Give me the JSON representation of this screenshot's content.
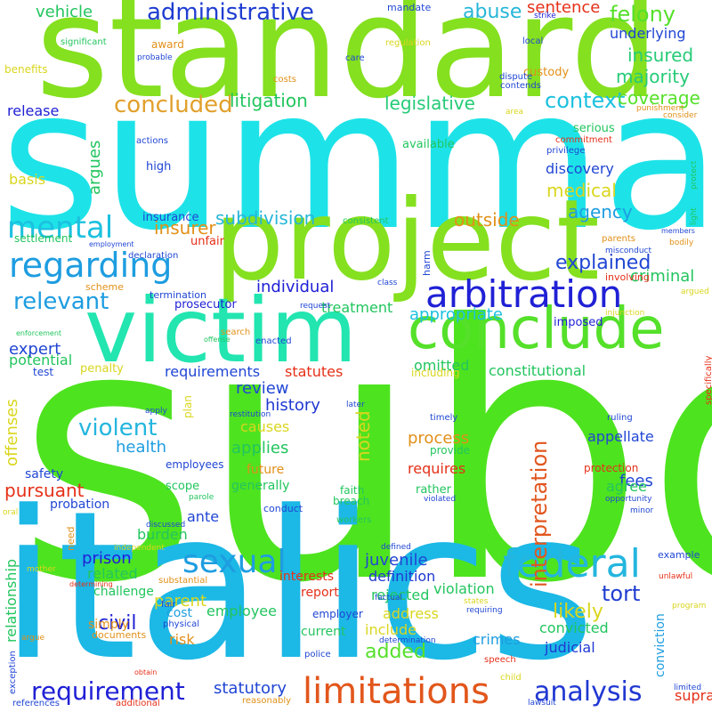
{
  "words": [
    {
      "text": "subd",
      "color": "#4ee31f"
    },
    {
      "text": "summary",
      "color": "#1de3e8"
    },
    {
      "text": "italics",
      "color": "#1cb8e6"
    },
    {
      "text": "standard",
      "color": "#85e01f"
    },
    {
      "text": "project",
      "color": "#85e01f"
    },
    {
      "text": "victim",
      "color": "#22e5b0"
    },
    {
      "text": "conclude",
      "color": "#55e02a"
    },
    {
      "text": "arbitration",
      "color": "#2020d6"
    },
    {
      "text": "limitations",
      "color": "#e2561b"
    },
    {
      "text": "federal",
      "color": "#23b6de"
    },
    {
      "text": "regarding",
      "color": "#1e9de0"
    },
    {
      "text": "sexual",
      "color": "#1e9de0"
    },
    {
      "text": "requirement",
      "color": "#2020d6"
    },
    {
      "text": "analysis",
      "color": "#2038d2"
    },
    {
      "text": "mental",
      "color": "#1cc1df"
    },
    {
      "text": "administrative",
      "color": "#1f3dd0"
    },
    {
      "text": "concluded",
      "color": "#e1a02c"
    },
    {
      "text": "relevant",
      "color": "#1e9de0"
    },
    {
      "text": "violent",
      "color": "#23b6de"
    },
    {
      "text": "interpretation",
      "color": "#e1561e"
    },
    {
      "text": "felony",
      "color": "#55e02a"
    },
    {
      "text": "context",
      "color": "#1cc1df"
    },
    {
      "text": "explained",
      "color": "#2046d4"
    },
    {
      "text": "pursuant",
      "color": "#e53018"
    },
    {
      "text": "litigation",
      "color": "#22c55e"
    },
    {
      "text": "abuse",
      "color": "#26b6d8"
    },
    {
      "text": "insured",
      "color": "#26cb77"
    },
    {
      "text": "majority",
      "color": "#26cb77"
    },
    {
      "text": "legislative",
      "color": "#26cb77"
    },
    {
      "text": "coverage",
      "color": "#55e02a"
    },
    {
      "text": "medical",
      "color": "#d9d61e"
    },
    {
      "text": "agency",
      "color": "#1e9de0"
    },
    {
      "text": "insurer",
      "color": "#e19019"
    },
    {
      "text": "outside",
      "color": "#e19019"
    },
    {
      "text": "individual",
      "color": "#2020d6"
    },
    {
      "text": "appropriate",
      "color": "#1cc1df"
    },
    {
      "text": "criminal",
      "color": "#22c55e"
    },
    {
      "text": "review",
      "color": "#2046d4"
    },
    {
      "text": "history",
      "color": "#2038d2"
    },
    {
      "text": "noted",
      "color": "#d9d61e"
    },
    {
      "text": "process",
      "color": "#e19019"
    },
    {
      "text": "juvenile",
      "color": "#2046d4"
    },
    {
      "text": "tort",
      "color": "#1f3dd0"
    },
    {
      "text": "civil",
      "color": "#2020d6"
    },
    {
      "text": "added",
      "color": "#55e02a"
    },
    {
      "text": "likely",
      "color": "#d9d61e"
    },
    {
      "text": "subdivision",
      "color": "#26b6d8"
    },
    {
      "text": "applies",
      "color": "#22c55e"
    },
    {
      "text": "offenses",
      "color": "#d9d61e"
    },
    {
      "text": "relationship",
      "color": "#22c55e"
    },
    {
      "text": "argues",
      "color": "#22c55e"
    },
    {
      "text": "statutory",
      "color": "#2046d4"
    },
    {
      "text": "health",
      "color": "#1e9de0"
    },
    {
      "text": "expert",
      "color": "#2046d4"
    },
    {
      "text": "fees",
      "color": "#2046d4"
    },
    {
      "text": "agree",
      "color": "#22c55e"
    },
    {
      "text": "prison",
      "color": "#2020d6"
    },
    {
      "text": "parent",
      "color": "#d9d61e"
    },
    {
      "text": "vehicle",
      "color": "#22c55e"
    },
    {
      "text": "sentence",
      "color": "#e53018"
    },
    {
      "text": "underlying",
      "color": "#2046d4"
    },
    {
      "text": "release",
      "color": "#2020d6"
    },
    {
      "text": "basis",
      "color": "#d9d61e"
    },
    {
      "text": "discovery",
      "color": "#2046d4"
    },
    {
      "text": "potential",
      "color": "#22c55e"
    },
    {
      "text": "treatment",
      "color": "#22c55e"
    },
    {
      "text": "requirements",
      "color": "#2046d4"
    },
    {
      "text": "statutes",
      "color": "#e53018"
    },
    {
      "text": "omitted",
      "color": "#22c55e"
    },
    {
      "text": "constitutional",
      "color": "#22c55e"
    },
    {
      "text": "requires",
      "color": "#e53018"
    },
    {
      "text": "burden",
      "color": "#22c55e"
    },
    {
      "text": "related",
      "color": "#22c55e"
    },
    {
      "text": "definition",
      "color": "#2038d2"
    },
    {
      "text": "rejected",
      "color": "#22c55e"
    },
    {
      "text": "violation",
      "color": "#22c55e"
    },
    {
      "text": "address",
      "color": "#d9d61e"
    },
    {
      "text": "include",
      "color": "#d9d61e"
    },
    {
      "text": "crimes",
      "color": "#1e9de0"
    },
    {
      "text": "convicted",
      "color": "#22c55e"
    },
    {
      "text": "judicial",
      "color": "#2038d2"
    },
    {
      "text": "risk",
      "color": "#e19019"
    },
    {
      "text": "employee",
      "color": "#22c55e"
    },
    {
      "text": "appellate",
      "color": "#2046d4"
    },
    {
      "text": "causes",
      "color": "#d9d61e"
    },
    {
      "text": "ante",
      "color": "#2046d4"
    },
    {
      "text": "probation",
      "color": "#2046d4"
    },
    {
      "text": "safety",
      "color": "#2046d4"
    },
    {
      "text": "conviction",
      "color": "#1e9de0"
    },
    {
      "text": "supra",
      "color": "#e53018"
    },
    {
      "text": "current",
      "color": "#22c55e"
    },
    {
      "text": "report",
      "color": "#e53018"
    },
    {
      "text": "interests",
      "color": "#e53018"
    },
    {
      "text": "challenge",
      "color": "#22c55e"
    },
    {
      "text": "simply",
      "color": "#e19019"
    },
    {
      "text": "cost",
      "color": "#1e9de0"
    },
    {
      "text": "future",
      "color": "#e19019"
    },
    {
      "text": "generally",
      "color": "#22c55e"
    },
    {
      "text": "insurance",
      "color": "#2046d4"
    },
    {
      "text": "penalty",
      "color": "#d9d61e"
    },
    {
      "text": "high",
      "color": "#2046d4"
    },
    {
      "text": "available",
      "color": "#22c55e"
    },
    {
      "text": "serious",
      "color": "#22c55e"
    },
    {
      "text": "custody",
      "color": "#e19019"
    },
    {
      "text": "prosecutor",
      "color": "#2020d6"
    },
    {
      "text": "imposed",
      "color": "#2020d6"
    },
    {
      "text": "scope",
      "color": "#22c55e"
    },
    {
      "text": "unfair",
      "color": "#e53018"
    },
    {
      "text": "settlement",
      "color": "#22c55e"
    },
    {
      "text": "employees",
      "color": "#2046d4"
    },
    {
      "text": "employer",
      "color": "#2046d4"
    },
    {
      "text": "rather",
      "color": "#22c55e"
    },
    {
      "text": "provide",
      "color": "#22c55e"
    },
    {
      "text": "protection",
      "color": "#e53018"
    },
    {
      "text": "need",
      "color": "#e19019"
    },
    {
      "text": "documents",
      "color": "#e19019"
    },
    {
      "text": "test",
      "color": "#2046d4"
    },
    {
      "text": "plan",
      "color": "#d9d61e"
    },
    {
      "text": "including",
      "color": "#d9d61e"
    },
    {
      "text": "faith",
      "color": "#22c55e"
    },
    {
      "text": "ruling",
      "color": "#2046d4"
    },
    {
      "text": "timely",
      "color": "#2046d4"
    },
    {
      "text": "breach",
      "color": "#22c55e"
    },
    {
      "text": "award",
      "color": "#e19019"
    },
    {
      "text": "benefits",
      "color": "#d9d61e"
    },
    {
      "text": "mandate",
      "color": "#2046d4"
    },
    {
      "text": "costs",
      "color": "#e19019"
    },
    {
      "text": "care",
      "color": "#2046d4"
    },
    {
      "text": "local",
      "color": "#2046d4"
    },
    {
      "text": "dispute",
      "color": "#2046d4"
    },
    {
      "text": "contends",
      "color": "#2046d4"
    },
    {
      "text": "area",
      "color": "#d9d61e"
    },
    {
      "text": "consider",
      "color": "#e19019"
    },
    {
      "text": "punishment",
      "color": "#e19019"
    },
    {
      "text": "regulation",
      "color": "#d9d61e"
    },
    {
      "text": "strike",
      "color": "#2020d6"
    },
    {
      "text": "significant",
      "color": "#22c55e"
    },
    {
      "text": "probable",
      "color": "#2046d4"
    },
    {
      "text": "actions",
      "color": "#2046d4"
    },
    {
      "text": "privilege",
      "color": "#2046d4"
    },
    {
      "text": "commitment",
      "color": "#e53018"
    },
    {
      "text": "protect",
      "color": "#22c55e"
    },
    {
      "text": "light",
      "color": "#22c55e"
    },
    {
      "text": "members",
      "color": "#2046d4"
    },
    {
      "text": "bodily",
      "color": "#e19019"
    },
    {
      "text": "argued",
      "color": "#d9d61e"
    },
    {
      "text": "parents",
      "color": "#e19019"
    },
    {
      "text": "consistent",
      "color": "#22c55e"
    },
    {
      "text": "employment",
      "color": "#2046d4"
    },
    {
      "text": "declaration",
      "color": "#2046d4"
    },
    {
      "text": "scheme",
      "color": "#e19019"
    },
    {
      "text": "termination",
      "color": "#2046d4"
    },
    {
      "text": "misconduct",
      "color": "#2046d4"
    },
    {
      "text": "involving",
      "color": "#e53018"
    },
    {
      "text": "injunction",
      "color": "#d9d61e"
    },
    {
      "text": "offense",
      "color": "#22c55e"
    },
    {
      "text": "enforcement",
      "color": "#22c55e"
    },
    {
      "text": "search",
      "color": "#e19019"
    },
    {
      "text": "enacted",
      "color": "#2046d4"
    },
    {
      "text": "harm",
      "color": "#2046d4"
    },
    {
      "text": "class",
      "color": "#2046d4"
    },
    {
      "text": "request",
      "color": "#2046d4"
    },
    {
      "text": "later",
      "color": "#2046d4"
    },
    {
      "text": "apply",
      "color": "#2046d4"
    },
    {
      "text": "restitution",
      "color": "#2046d4"
    },
    {
      "text": "specifically",
      "color": "#e53018"
    },
    {
      "text": "parole",
      "color": "#22c55e"
    },
    {
      "text": "conduct",
      "color": "#2046d4"
    },
    {
      "text": "discussed",
      "color": "#2046d4"
    },
    {
      "text": "oral",
      "color": "#d9d61e"
    },
    {
      "text": "independent",
      "color": "#d9d61e"
    },
    {
      "text": "workers",
      "color": "#22c55e"
    },
    {
      "text": "violated",
      "color": "#2046d4"
    },
    {
      "text": "opportunity",
      "color": "#2046d4"
    },
    {
      "text": "minor",
      "color": "#2046d4"
    },
    {
      "text": "mother",
      "color": "#d9d61e"
    },
    {
      "text": "determining",
      "color": "#e53018"
    },
    {
      "text": "substantial",
      "color": "#e19019"
    },
    {
      "text": "factual",
      "color": "#2046d4"
    },
    {
      "text": "defined",
      "color": "#2046d4"
    },
    {
      "text": "states",
      "color": "#d9d61e"
    },
    {
      "text": "requiring",
      "color": "#2046d4"
    },
    {
      "text": "example",
      "color": "#2046d4"
    },
    {
      "text": "unlawful",
      "color": "#e53018"
    },
    {
      "text": "program",
      "color": "#d9d61e"
    },
    {
      "text": "fair",
      "color": "#2046d4"
    },
    {
      "text": "physical",
      "color": "#2046d4"
    },
    {
      "text": "police",
      "color": "#2046d4"
    },
    {
      "text": "determination",
      "color": "#2046d4"
    },
    {
      "text": "speech",
      "color": "#e53018"
    },
    {
      "text": "argue",
      "color": "#e19019"
    },
    {
      "text": "exception",
      "color": "#2046d4"
    },
    {
      "text": "references",
      "color": "#2046d4"
    },
    {
      "text": "obtain",
      "color": "#e53018"
    },
    {
      "text": "additional",
      "color": "#e53018"
    },
    {
      "text": "reasonably",
      "color": "#e19019"
    },
    {
      "text": "child",
      "color": "#d9d61e"
    },
    {
      "text": "lawsuit",
      "color": "#2046d4"
    },
    {
      "text": "limited",
      "color": "#2046d4"
    }
  ]
}
